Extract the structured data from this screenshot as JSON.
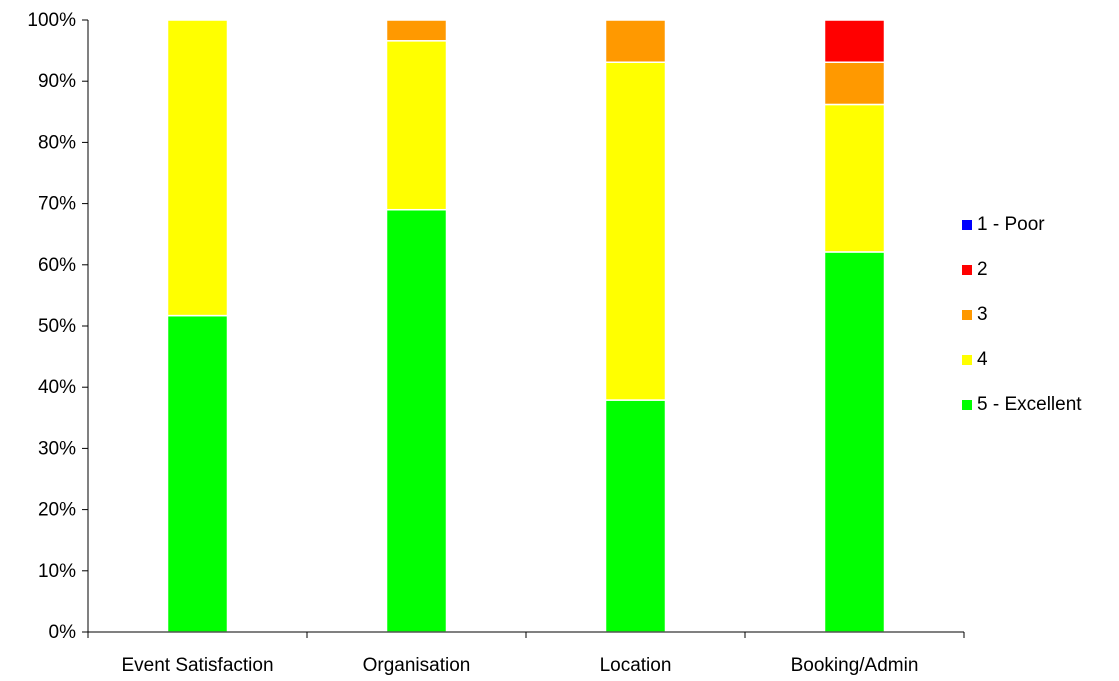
{
  "chart_data": {
    "type": "bar",
    "stacked": true,
    "percent": true,
    "title": "",
    "xlabel": "",
    "ylabel": "",
    "ylim": [
      0,
      100
    ],
    "grid": false,
    "legend_position": "right",
    "categories": [
      "Event Satisfaction",
      "Organisation",
      "Location",
      "Booking/Admin"
    ],
    "y_ticks": [
      "0%",
      "10%",
      "20%",
      "30%",
      "40%",
      "50%",
      "60%",
      "70%",
      "80%",
      "90%",
      "100%"
    ],
    "series": [
      {
        "name": "5 - Excellent",
        "color": "#00ff00",
        "values": [
          51.7,
          69.0,
          37.9,
          62.1
        ]
      },
      {
        "name": "4",
        "color": "#ffff00",
        "values": [
          48.3,
          27.6,
          55.2,
          24.1
        ]
      },
      {
        "name": "3",
        "color": "#ff9900",
        "values": [
          0,
          3.4,
          6.9,
          6.9
        ]
      },
      {
        "name": "2",
        "color": "#ff0000",
        "values": [
          0,
          0,
          0,
          6.9
        ]
      },
      {
        "name": "1 - Poor",
        "color": "#0000ff",
        "values": [
          0,
          0,
          0,
          0
        ]
      }
    ],
    "legend_order": [
      "1 - Poor",
      "2",
      "3",
      "4",
      "5 - Excellent"
    ]
  }
}
